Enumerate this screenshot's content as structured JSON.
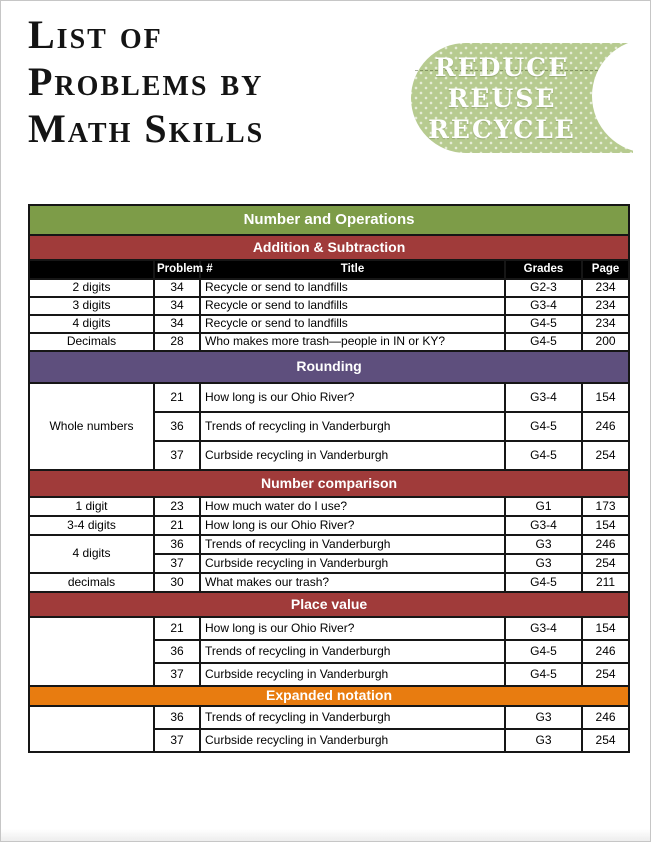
{
  "page": {
    "title_lines": [
      "List of",
      "Problems by",
      "Math Skills"
    ]
  },
  "badge": {
    "lines": [
      "REDUCE",
      "REUSE",
      "RECYCLE"
    ],
    "color": "#b7cb90"
  },
  "table": {
    "group_header": {
      "label": "Number and Operations",
      "color": "#7d9c48"
    },
    "columns": [
      "",
      "Problem #",
      "Title",
      "Grades",
      "Page"
    ],
    "colors": {
      "section_red": "#a03b3a",
      "section_purple": "#5e4f7d",
      "section_orange": "#e87c10",
      "column_header_black": "#000000"
    },
    "sections": [
      {
        "label": "Addition & Subtraction",
        "color": "#a03b3a",
        "show_columns": true,
        "rows": [
          {
            "skill": "2 digits",
            "span": 1,
            "problem": "34",
            "title": "Recycle or send to landfills",
            "grades": "G2-3",
            "page": "234"
          },
          {
            "skill": "3 digits",
            "span": 1,
            "problem": "34",
            "title": "Recycle or send to landfills",
            "grades": "G3-4",
            "page": "234"
          },
          {
            "skill": "4 digits",
            "span": 1,
            "problem": "34",
            "title": "Recycle or send to landfills",
            "grades": "G4-5",
            "page": "234"
          },
          {
            "skill": "Decimals",
            "span": 1,
            "problem": "28",
            "title": "Who makes more trash—people in IN or KY?",
            "grades": "G4-5",
            "page": "200"
          }
        ]
      },
      {
        "label": "Rounding",
        "color": "#5e4f7d",
        "show_columns": false,
        "rows": [
          {
            "skill": "Whole numbers",
            "span": 3,
            "problem": "21",
            "title": "How long is our Ohio River?",
            "grades": "G3-4",
            "page": "154"
          },
          {
            "problem": "36",
            "title": "Trends of recycling in Vanderburgh",
            "grades": "G4-5",
            "page": "246"
          },
          {
            "problem": "37",
            "title": "Curbside recycling in Vanderburgh",
            "grades": "G4-5",
            "page": "254"
          }
        ]
      },
      {
        "label": "Number comparison",
        "color": "#a03b3a",
        "show_columns": false,
        "rows": [
          {
            "skill": "1 digit",
            "span": 1,
            "problem": "23",
            "title": "How much water do I use?",
            "grades": "G1",
            "page": "173"
          },
          {
            "skill": "3-4 digits",
            "span": 1,
            "problem": "21",
            "title": "How long is our Ohio River?",
            "grades": "G3-4",
            "page": "154"
          },
          {
            "skill": "4 digits",
            "span": 2,
            "problem": "36",
            "title": "Trends of recycling in Vanderburgh",
            "grades": "G3",
            "page": "246"
          },
          {
            "problem": "37",
            "title": "Curbside recycling in Vanderburgh",
            "grades": "G3",
            "page": "254"
          },
          {
            "skill": "decimals",
            "span": 1,
            "problem": "30",
            "title": "What makes our trash?",
            "grades": "G4-5",
            "page": "211"
          }
        ]
      },
      {
        "label": "Place value",
        "color": "#a03b3a",
        "show_columns": false,
        "rows": [
          {
            "skill": "",
            "span": 3,
            "problem": "21",
            "title": "How long is our Ohio River?",
            "grades": "G3-4",
            "page": "154"
          },
          {
            "problem": "36",
            "title": "Trends of recycling in Vanderburgh",
            "grades": "G4-5",
            "page": "246"
          },
          {
            "problem": "37",
            "title": "Curbside recycling in Vanderburgh",
            "grades": "G4-5",
            "page": "254"
          }
        ]
      },
      {
        "label": "Expanded notation",
        "color": "#e87c10",
        "show_columns": false,
        "rows": [
          {
            "skill": "",
            "span": 2,
            "problem": "36",
            "title": "Trends of recycling in Vanderburgh",
            "grades": "G3",
            "page": "246"
          },
          {
            "problem": "37",
            "title": "Curbside recycling in Vanderburgh",
            "grades": "G3",
            "page": "254"
          }
        ]
      }
    ]
  }
}
